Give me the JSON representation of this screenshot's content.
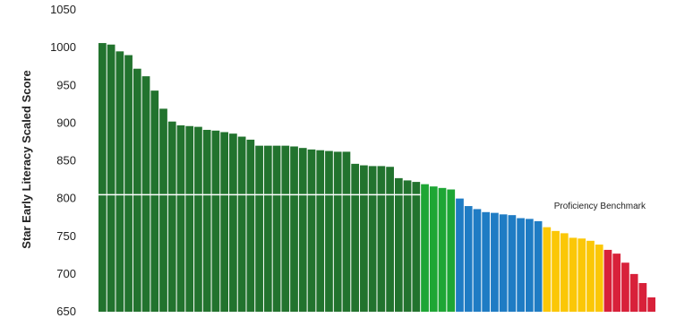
{
  "chart_data": {
    "type": "bar",
    "title": "",
    "xlabel": "",
    "ylabel": "Star Early Literacy Scaled Score",
    "ylim": [
      650,
      1050
    ],
    "yticks": [
      650,
      700,
      750,
      800,
      850,
      900,
      950,
      1000,
      1050
    ],
    "grid": false,
    "benchmark": {
      "label": "Proficiency Benchmark",
      "value": 805,
      "color": "#ffffff"
    },
    "color_groups": {
      "dark_green": "#22732e",
      "green": "#1ea635",
      "blue": "#1f7cc4",
      "yellow": "#fbc707",
      "red": "#d8213a"
    },
    "values": [
      1006,
      1004,
      995,
      990,
      972,
      962,
      943,
      919,
      902,
      897,
      896,
      895,
      891,
      890,
      888,
      886,
      882,
      878,
      870,
      870,
      870,
      870,
      869,
      867,
      865,
      864,
      863,
      862,
      862,
      846,
      844,
      843,
      843,
      842,
      827,
      824,
      822,
      819,
      816,
      814,
      812,
      800,
      790,
      786,
      782,
      781,
      779,
      778,
      774,
      773,
      770,
      762,
      757,
      754,
      748,
      747,
      744,
      739,
      732,
      727,
      715,
      700,
      688,
      669
    ],
    "groups": [
      "dark_green",
      "dark_green",
      "dark_green",
      "dark_green",
      "dark_green",
      "dark_green",
      "dark_green",
      "dark_green",
      "dark_green",
      "dark_green",
      "dark_green",
      "dark_green",
      "dark_green",
      "dark_green",
      "dark_green",
      "dark_green",
      "dark_green",
      "dark_green",
      "dark_green",
      "dark_green",
      "dark_green",
      "dark_green",
      "dark_green",
      "dark_green",
      "dark_green",
      "dark_green",
      "dark_green",
      "dark_green",
      "dark_green",
      "dark_green",
      "dark_green",
      "dark_green",
      "dark_green",
      "dark_green",
      "dark_green",
      "dark_green",
      "dark_green",
      "green",
      "green",
      "green",
      "green",
      "blue",
      "blue",
      "blue",
      "blue",
      "blue",
      "blue",
      "blue",
      "blue",
      "blue",
      "blue",
      "yellow",
      "yellow",
      "yellow",
      "yellow",
      "yellow",
      "yellow",
      "yellow",
      "red",
      "red",
      "red",
      "red",
      "red",
      "red"
    ]
  }
}
